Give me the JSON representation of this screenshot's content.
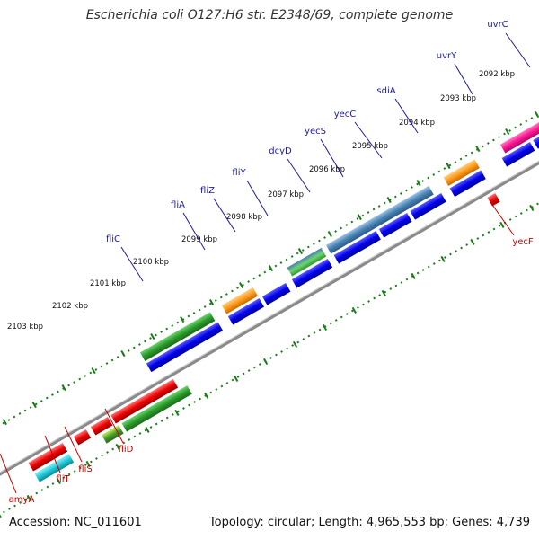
{
  "title": "Escherichia coli O127:H6 str. E2348/69, complete genome",
  "footer": {
    "accession": "Accession: NC_011601",
    "summary": "Topology: circular; Length: 4,965,553 bp; Genes: 4,739"
  },
  "colors": {
    "forward_label": "#1a1aa6",
    "reverse_label": "#cc0000",
    "backbone": "#888888",
    "ticks": "#1a7a1a",
    "cds": "#0000ee",
    "flagellar_green": "#2a9a2a",
    "orange": "#ff9b1a",
    "steel_blue": "#4682b4",
    "magenta": "#ff1493",
    "red": "#ee0000",
    "cyan": "#1ec8d8"
  },
  "ticks": [
    "2092 kbp",
    "2093 kbp",
    "2094 kbp",
    "2095 kbp",
    "2096 kbp",
    "2097 kbp",
    "2098 kbp",
    "2099 kbp",
    "2100 kbp",
    "2101 kbp",
    "2102 kbp",
    "2103 kbp"
  ],
  "forward_genes": [
    "uvrC",
    "uvrY",
    "sdiA",
    "yecC",
    "yecS",
    "dcyD",
    "fliY",
    "fliZ",
    "fliA",
    "fliC"
  ],
  "reverse_genes": [
    "yecF",
    "fliD",
    "fliS",
    "fliT",
    "amyA"
  ]
}
